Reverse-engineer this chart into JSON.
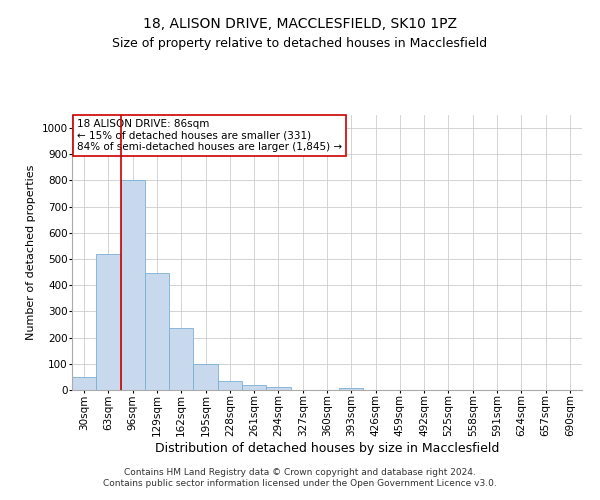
{
  "title1": "18, ALISON DRIVE, MACCLESFIELD, SK10 1PZ",
  "title2": "Size of property relative to detached houses in Macclesfield",
  "xlabel": "Distribution of detached houses by size in Macclesfield",
  "ylabel": "Number of detached properties",
  "footnote1": "Contains HM Land Registry data © Crown copyright and database right 2024.",
  "footnote2": "Contains public sector information licensed under the Open Government Licence v3.0.",
  "categories": [
    "30sqm",
    "63sqm",
    "96sqm",
    "129sqm",
    "162sqm",
    "195sqm",
    "228sqm",
    "261sqm",
    "294sqm",
    "327sqm",
    "360sqm",
    "393sqm",
    "426sqm",
    "459sqm",
    "492sqm",
    "525sqm",
    "558sqm",
    "591sqm",
    "624sqm",
    "657sqm",
    "690sqm"
  ],
  "values": [
    50,
    520,
    800,
    445,
    237,
    98,
    35,
    20,
    10,
    0,
    0,
    8,
    0,
    0,
    0,
    0,
    0,
    0,
    0,
    0,
    0
  ],
  "bar_color": "#c9d9ed",
  "bar_edge_color": "#7bafd4",
  "vline_x": 1.5,
  "vline_color": "#cc0000",
  "annotation_text": "18 ALISON DRIVE: 86sqm\n← 15% of detached houses are smaller (331)\n84% of semi-detached houses are larger (1,845) →",
  "annotation_box_color": "#ffffff",
  "annotation_box_edge_color": "#cc0000",
  "ylim": [
    0,
    1050
  ],
  "yticks": [
    0,
    100,
    200,
    300,
    400,
    500,
    600,
    700,
    800,
    900,
    1000
  ],
  "grid_color": "#cccccc",
  "bg_color": "#ffffff",
  "title1_fontsize": 10,
  "title2_fontsize": 9,
  "xlabel_fontsize": 9,
  "ylabel_fontsize": 8,
  "tick_fontsize": 7.5,
  "annotation_fontsize": 7.5,
  "footnote_fontsize": 6.5
}
